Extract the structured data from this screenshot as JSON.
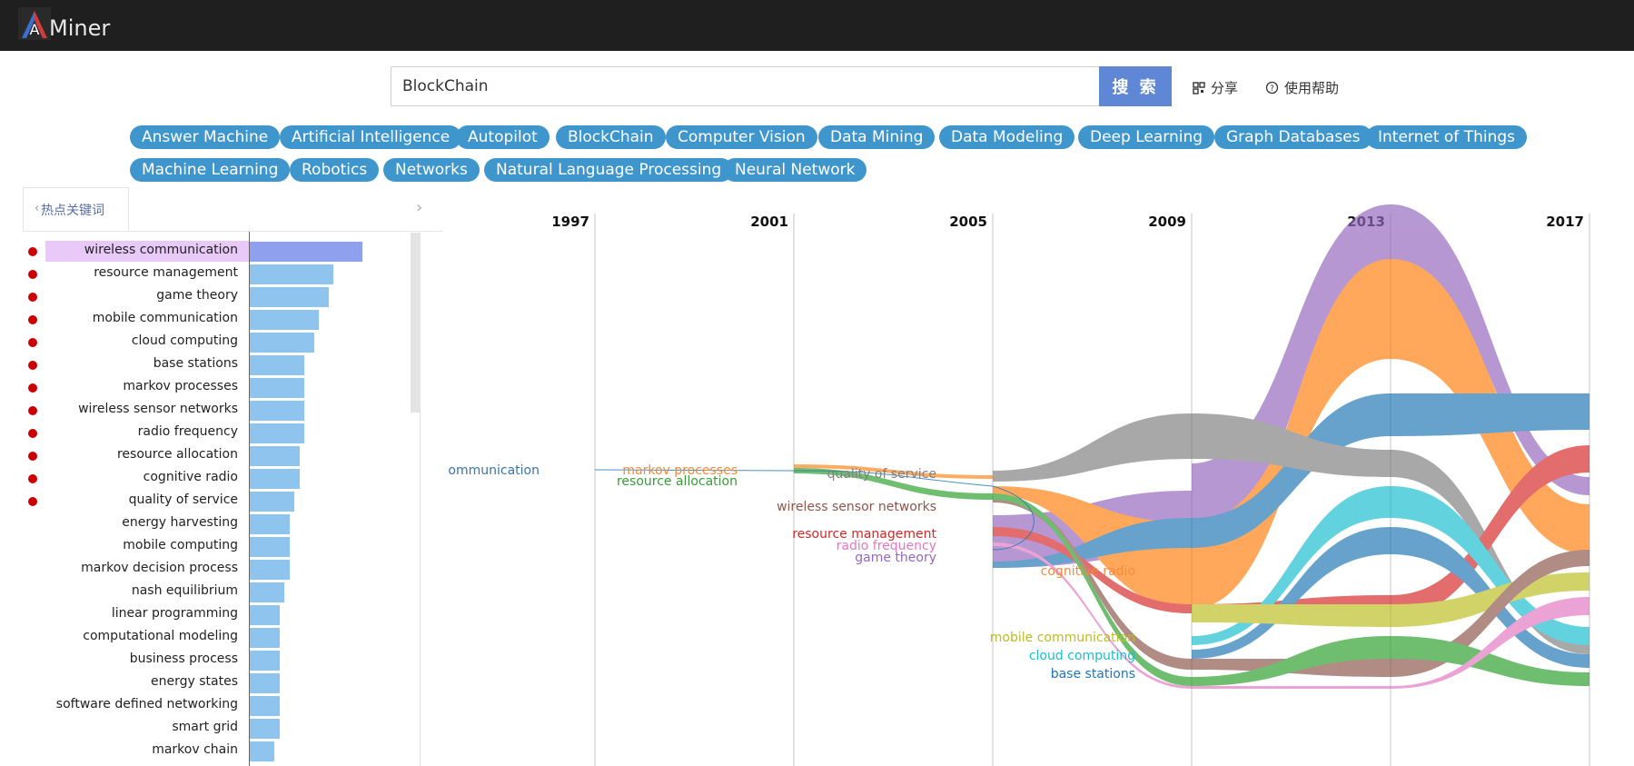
{
  "header": {
    "logo_text": "Miner",
    "logo_letter": "A"
  },
  "search": {
    "value": "BlockChain",
    "button_label": "搜 索"
  },
  "tools": {
    "share_label": "分享",
    "help_label": "使用帮助"
  },
  "tags": [
    "Answer Machine",
    "Artificial Intelligence",
    "Autopilot",
    "BlockChain",
    "Computer Vision",
    "Data Mining",
    "Data Modeling",
    "Deep Learning",
    "Graph Databases",
    "Internet of Things",
    "Machine Learning",
    "Robotics",
    "Networks",
    "Natural Language Processing",
    "Neural Network"
  ],
  "panel": {
    "title": "热点关键词"
  },
  "keywords": [
    {
      "label": "wireless communication",
      "value": 124,
      "hot": true,
      "selected": true
    },
    {
      "label": "resource management",
      "value": 92,
      "hot": true
    },
    {
      "label": "game theory",
      "value": 87,
      "hot": true
    },
    {
      "label": "mobile communication",
      "value": 76,
      "hot": true
    },
    {
      "label": "cloud computing",
      "value": 71,
      "hot": true
    },
    {
      "label": "base stations",
      "value": 60,
      "hot": true
    },
    {
      "label": "markov processes",
      "value": 60,
      "hot": true
    },
    {
      "label": "wireless sensor networks",
      "value": 60,
      "hot": true
    },
    {
      "label": "radio frequency",
      "value": 60,
      "hot": true
    },
    {
      "label": "resource allocation",
      "value": 55,
      "hot": true
    },
    {
      "label": "cognitive radio",
      "value": 55,
      "hot": true
    },
    {
      "label": "quality of service",
      "value": 49,
      "hot": true
    },
    {
      "label": "energy harvesting",
      "value": 44,
      "hot": false
    },
    {
      "label": "mobile computing",
      "value": 44,
      "hot": false
    },
    {
      "label": "markov decision process",
      "value": 44,
      "hot": false
    },
    {
      "label": "nash equilibrium",
      "value": 38,
      "hot": false
    },
    {
      "label": "linear programming",
      "value": 33,
      "hot": false
    },
    {
      "label": "computational modeling",
      "value": 33,
      "hot": false
    },
    {
      "label": "business process",
      "value": 33,
      "hot": false
    },
    {
      "label": "energy states",
      "value": 33,
      "hot": false
    },
    {
      "label": "software defined networking",
      "value": 33,
      "hot": false
    },
    {
      "label": "smart grid",
      "value": 33,
      "hot": false
    },
    {
      "label": "markov chain",
      "value": 27,
      "hot": false
    }
  ],
  "timeline": {
    "years": [
      "1997",
      "2001",
      "2005",
      "2009",
      "2013",
      "2017"
    ],
    "flow_labels": [
      {
        "text": "ommunication",
        "color": "#3b72a8"
      },
      {
        "text": "markov processes",
        "color": "#f08a3a"
      },
      {
        "text": "resource allocation",
        "color": "#3a9a3a"
      },
      {
        "text": "quality of service",
        "color": "#808080"
      },
      {
        "text": "wireless sensor networks",
        "color": "#8c564b"
      },
      {
        "text": "resource management",
        "color": "#d62728"
      },
      {
        "text": "radio frequency",
        "color": "#e377c2"
      },
      {
        "text": "game theory",
        "color": "#9467bd"
      },
      {
        "text": "cognitive radio",
        "color": "#f5893d"
      },
      {
        "text": "mobile communication",
        "color": "#bcbd22"
      },
      {
        "text": "cloud computing",
        "color": "#17becf"
      },
      {
        "text": "base stations",
        "color": "#1f77b4"
      }
    ]
  },
  "colors": {
    "tag": "#3f96cc",
    "bar": "#8fc4ef",
    "selected_bar": "#8fa0ef",
    "selected_label": "#e8c9f7",
    "hot_dot": "#cc0000"
  }
}
